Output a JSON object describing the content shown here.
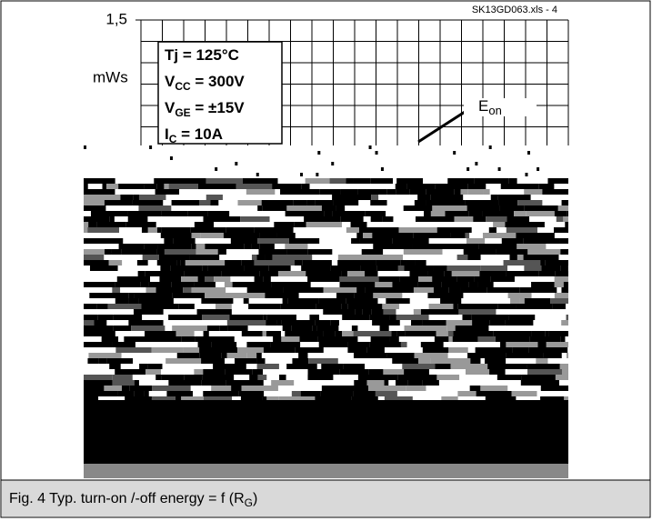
{
  "chart_data": {
    "type": "line",
    "source": "SK13GD063.xls - 4",
    "ylabel": "mWs",
    "yticks": [
      {
        "value": 1.5,
        "label": "1,5"
      }
    ],
    "conditions": [
      {
        "base": "Tj = 125°C"
      },
      {
        "base": "V",
        "sub": "CC",
        "rest": " = 300V"
      },
      {
        "base": "V",
        "sub": "GE",
        "rest": " = ±15V"
      },
      {
        "base": "I",
        "sub": "C",
        "rest": " = 10A"
      }
    ],
    "series": [
      {
        "name": "E",
        "name_sub": "on"
      }
    ],
    "caption": {
      "text": "Fig. 4 Typ. turn-on /-off energy = f (R",
      "sub": "G",
      "end": ")"
    }
  }
}
